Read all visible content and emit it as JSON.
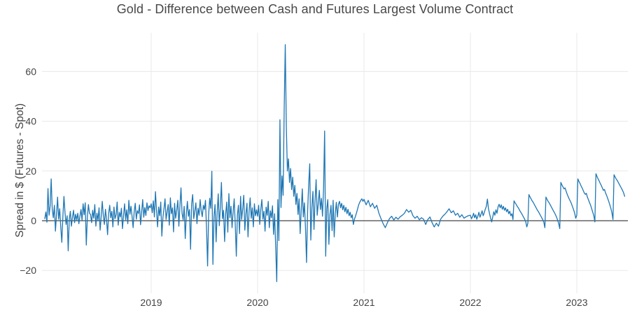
{
  "chart_data": {
    "type": "line",
    "title": "Gold - Difference between Cash and Futures Largest Volume Contract",
    "xlabel": "",
    "ylabel": "Spread in $ (Futures - Spot)",
    "legend": false,
    "grid": true,
    "series_name": "spread",
    "xlim": [
      2017.97,
      2023.48
    ],
    "ylim": [
      -28.6,
      75.3
    ],
    "x_ticks": [
      2019,
      2020,
      2021,
      2022,
      2023
    ],
    "x_tick_labels": [
      "2019",
      "2020",
      "2021",
      "2022",
      "2023"
    ],
    "y_ticks": [
      -20,
      0,
      20,
      40,
      60
    ],
    "y_tick_labels": [
      "−20",
      "0",
      "20",
      "40",
      "60"
    ],
    "colors": {
      "line": "#1f77b4",
      "grid": "#e8e8e8",
      "zeroline": "#444444",
      "text": "#444444",
      "background": "#ffffff"
    },
    "segments": [
      {
        "x0": 2018.0,
        "dx": 0.01,
        "values": [
          0.8,
          3.5,
          -0.6,
          12.9,
          2.2,
          5.8,
          16.8,
          4.5,
          1.2,
          6.2,
          -4.2,
          2.5,
          9.5,
          0.6,
          4.8,
          -2.5,
          -8.7,
          1.8,
          9.8,
          3.2,
          -1.5,
          2.0,
          -12.1,
          0.5,
          3.8,
          -2.2,
          1.4,
          4.2,
          -0.8,
          2.6,
          0.3,
          3.0,
          -1.2,
          1.8,
          4.5,
          0.2,
          6.8,
          2.4,
          7.2,
          -9.8,
          1.5,
          6.5,
          3.0,
          2.5,
          -0.8,
          4.2,
          1.0,
          6.5,
          -2.2,
          3.0,
          0.2,
          5.2,
          -3.8,
          1.6,
          7.8,
          2.2,
          -1.5,
          4.6,
          0.5,
          -5.6,
          2.8,
          6.2,
          1.2,
          3.8,
          -2.5,
          5.5,
          0.8,
          2.4,
          7.5,
          -1.8,
          3.4,
          1.5,
          5.0,
          -3.2,
          2.0,
          6.8,
          0.4,
          4.4,
          -1.2,
          8.2,
          2.6,
          5.8,
          1.8,
          -2.8,
          3.6,
          7.0,
          0.6,
          4.0,
          2.9,
          6.4,
          -1.6,
          3.3,
          8.5,
          1.4,
          5.3,
          2.1,
          7.2,
          4.1,
          6.0,
          5.2
        ]
      },
      {
        "x0": 2019.0,
        "dx": 0.01,
        "values": [
          6.8,
          3.2,
          8.0,
          1.5,
          11.7,
          4.2,
          -2.5,
          5.5,
          2.0,
          7.5,
          -6.2,
          1.2,
          4.8,
          8.8,
          0.5,
          3.6,
          6.5,
          -1.8,
          9.2,
          2.8,
          5.2,
          -4.5,
          7.0,
          1.0,
          4.2,
          8.2,
          -2.2,
          6.0,
          13.2,
          3.0,
          0.4,
          5.8,
          -7.2,
          2.5,
          7.8,
          1.8,
          4.5,
          -11.5,
          6.8,
          10.5,
          0.8,
          3.9,
          7.2,
          -1.2,
          5.0,
          2.2,
          8.5,
          4.0,
          1.6,
          6.2,
          4.5,
          8.2,
          -3.0,
          -18.2,
          2.5,
          9.0,
          5.0,
          19.9,
          -17.6,
          1.5,
          6.5,
          -8.5,
          3.2,
          10.8,
          -2.0,
          5.5,
          15.4,
          0.8,
          4.2,
          -8.4,
          2.8,
          7.5,
          -4.6,
          10.9,
          1.2,
          5.8,
          -2.8,
          3.5,
          8.8,
          -1.5,
          -14.3,
          2.2,
          6.2,
          -5.2,
          9.8,
          0.5,
          4.8,
          10.2,
          -3.8,
          2.6,
          7.0,
          -6.5,
          3.8,
          9.2,
          1.0,
          5.2,
          -2.5,
          6.8,
          2.0,
          4.4
        ]
      },
      {
        "x0": 2020.0,
        "dx": 0.01,
        "values": [
          1.8,
          6.2,
          -1.5,
          4.5,
          8.5,
          0.6,
          3.8,
          -4.2,
          5.5,
          2.2,
          7.8,
          -2.8,
          4.0,
          1.2,
          6.0,
          -5.5,
          2.8,
          -10.5,
          -24.5,
          8.5,
          -8.0,
          40.6,
          5.3,
          18.0,
          10.2,
          45.0,
          70.8,
          38.0,
          20.0,
          24.9,
          15.4,
          21.0,
          12.5,
          17.5,
          9.8,
          14.2,
          6.5,
          11.0,
          2.5,
          8.8,
          -5.2,
          4.2,
          12.8,
          1.5,
          7.2,
          -2.8,
          -16.8,
          3.8,
          14.5,
          22.9,
          -7.8,
          5.2,
          11.8,
          -3.5,
          8.2,
          16.5,
          2.2,
          6.8,
          12.2,
          4.5,
          9.0,
          1.8,
          13.0,
          36.1,
          -14.3,
          4.8,
          8.5,
          -9.5,
          2.5,
          6.2,
          -4.0,
          8.2,
          -6.5,
          3.0,
          7.4,
          1.5,
          6.6,
          7.8,
          5.2,
          7.0,
          4.4,
          6.2,
          3.6,
          5.4,
          2.8,
          4.6,
          2.0,
          3.4,
          1.2,
          2.4,
          -1.5,
          0.6,
          1.8,
          3.2,
          4.8,
          6.4,
          7.4,
          8.2,
          8.8,
          7.8
        ]
      },
      {
        "x0": 2021.0,
        "dx": 0.02,
        "values": [
          8.6,
          6.4,
          8.2,
          5.6,
          7.0,
          5.0,
          6.2,
          3.0,
          0.8,
          -1.2,
          -2.8,
          -0.8,
          0.9,
          1.8,
          0.3,
          1.4,
          0.6,
          1.6,
          2.2,
          3.0,
          4.5,
          3.4,
          4.2,
          2.0,
          1.0,
          1.8,
          0.4,
          1.2,
          0.6,
          -1.5,
          0.5,
          1.5,
          -0.8,
          -2.5,
          -1.0,
          -2.2,
          0.6,
          1.8,
          2.6,
          3.6,
          4.8,
          3.2,
          4.0,
          2.2,
          3.0,
          1.4,
          2.4,
          1.0,
          1.6,
          2.0
        ]
      },
      {
        "x0": 2022.0,
        "dx": 0.01,
        "values": [
          2.2,
          0.8,
          1.6,
          3.0,
          1.2,
          2.4,
          0.6,
          1.8,
          3.4,
          1.4,
          2.6,
          4.0,
          2.0,
          3.2,
          4.6,
          5.8,
          8.7,
          4.8,
          2.8,
          1.0,
          -0.5,
          1.5,
          3.6,
          2.2,
          4.4,
          3.0,
          5.6,
          6.6,
          5.2,
          6.4,
          4.6,
          5.8,
          4.2,
          5.2,
          3.6,
          4.6,
          2.8,
          3.8,
          2.0,
          2.8,
          0.5,
          8.0,
          7.2,
          6.6,
          5.8,
          5.2,
          4.4,
          3.6,
          3.0,
          2.2,
          1.4,
          0.6,
          -0.4,
          -2.5,
          -1.0,
          10.5,
          9.6,
          8.8,
          8.0,
          7.4,
          6.6,
          5.8,
          5.0,
          4.2,
          3.6,
          2.8,
          2.0,
          1.2,
          0.4,
          -0.6,
          -2.8,
          9.5,
          8.6,
          7.8,
          7.2,
          6.4,
          5.6,
          4.8,
          4.0,
          3.2,
          2.4,
          1.4,
          0.2,
          -1.2,
          -3.2,
          15.4,
          14.4,
          13.6,
          12.8,
          13.2,
          11.8,
          10.6,
          9.6,
          8.6,
          7.8,
          6.8,
          5.6,
          4.4,
          3.0,
          1.0
        ]
      },
      {
        "x0": 2023.0,
        "dx": 0.01,
        "values": [
          2.2,
          16.8,
          15.8,
          15.0,
          14.0,
          13.2,
          12.2,
          11.2,
          10.6,
          11.0,
          9.4,
          8.4,
          7.2,
          6.2,
          4.8,
          3.4,
          2.0,
          -0.5,
          18.9,
          17.8,
          16.8,
          16.0,
          15.0,
          14.2,
          13.2,
          12.2,
          12.6,
          11.2,
          10.2,
          9.0,
          7.8,
          6.4,
          5.0,
          3.2,
          0.5,
          18.5,
          17.6,
          16.8,
          16.2,
          15.4,
          14.6,
          13.8,
          13.0,
          12.2,
          11.2,
          9.8
        ]
      }
    ]
  }
}
